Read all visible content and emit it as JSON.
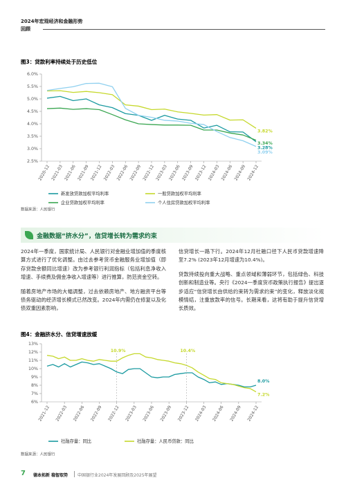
{
  "header": {
    "title": "2024年宏观经济和金融形势",
    "section": "回顾"
  },
  "chart_data": [
    {
      "type": "line",
      "title": "图3：贷款利率持续处于历史低位",
      "source": "数据来源：人民银行",
      "categories": [
        "2020-12",
        "2021-03",
        "2021-06",
        "2021-09",
        "2021-12",
        "2022-03",
        "2022-06",
        "2022-09",
        "2022-12",
        "2023-03",
        "2023-06",
        "2023-09",
        "2023-12",
        "2024-03",
        "2024-06",
        "2024-09",
        "2024-12"
      ],
      "ylim": [
        2.5,
        6.0
      ],
      "yticks": [
        {
          "value": 2.5,
          "label": "2.5%"
        },
        {
          "value": 3.0,
          "label": "3.0%"
        },
        {
          "value": 3.5,
          "label": "3.5%"
        },
        {
          "value": 4.0,
          "label": "4.0%"
        },
        {
          "value": 4.5,
          "label": "4.5%"
        },
        {
          "value": 5.0,
          "label": "5.0%"
        },
        {
          "value": 5.5,
          "label": "5.5%"
        },
        {
          "value": 6.0,
          "label": "6.0%"
        }
      ],
      "series": [
        {
          "name": "新发放贷款加权平均利率",
          "color": "#1a9aa0",
          "values": [
            5.03,
            5.1,
            4.93,
            5.0,
            4.76,
            4.65,
            4.41,
            4.34,
            4.14,
            4.34,
            4.19,
            4.14,
            3.83,
            3.94,
            3.68,
            3.67,
            3.28
          ],
          "value_labels": [
            null,
            null,
            null,
            null,
            null,
            null,
            null,
            null,
            null,
            null,
            null,
            null,
            null,
            null,
            null,
            null,
            "3.28%"
          ]
        },
        {
          "name": "一般贷款加权平均利率",
          "color": "#c5d82b",
          "values": [
            5.32,
            5.33,
            5.26,
            5.3,
            5.25,
            5.17,
            4.76,
            4.71,
            4.57,
            4.59,
            4.48,
            4.42,
            4.35,
            4.37,
            4.15,
            4.16,
            3.82
          ],
          "value_labels": [
            null,
            null,
            null,
            null,
            null,
            null,
            null,
            null,
            null,
            null,
            null,
            null,
            null,
            null,
            null,
            null,
            "3.82%"
          ]
        },
        {
          "name": "企业贷款加权平均利率",
          "color": "#3aa651",
          "values": [
            4.61,
            4.63,
            4.58,
            4.61,
            4.57,
            4.37,
            4.16,
            4.0,
            3.97,
            3.95,
            3.95,
            3.94,
            3.75,
            3.75,
            3.63,
            3.55,
            3.34
          ],
          "value_labels": [
            null,
            null,
            null,
            null,
            null,
            null,
            null,
            null,
            null,
            null,
            null,
            null,
            null,
            null,
            null,
            null,
            "3.34%"
          ]
        },
        {
          "name": "个人住房贷款加权平均利率",
          "color": "#8fd0ef",
          "values": [
            5.34,
            5.42,
            5.49,
            5.62,
            5.63,
            5.49,
            4.62,
            4.34,
            4.26,
            4.14,
            4.11,
            4.02,
            3.97,
            3.69,
            3.45,
            3.32,
            3.09
          ],
          "value_labels": [
            null,
            null,
            null,
            null,
            null,
            null,
            null,
            null,
            null,
            null,
            null,
            null,
            null,
            null,
            null,
            null,
            "3.09%"
          ]
        }
      ]
    },
    {
      "type": "line",
      "title": "图4：金融挤水分、信贷增速放缓",
      "source": "数据来源：人民银行",
      "categories": [
        "2021-12",
        null,
        null,
        "2022-03",
        null,
        null,
        "2022-06",
        null,
        null,
        "2022-09",
        null,
        null,
        "2022-12",
        null,
        null,
        "2023-03",
        null,
        null,
        "2023-06",
        null,
        null,
        "2023-09",
        null,
        null,
        "2023-12",
        null,
        null,
        "2024-03",
        null,
        null,
        "2024-06",
        null,
        null,
        "2024-09",
        null,
        null,
        "2024-12"
      ],
      "ylim": [
        6,
        13
      ],
      "yticks": [
        {
          "value": 6,
          "label": "6%"
        },
        {
          "value": 7,
          "label": "7%"
        },
        {
          "value": 8,
          "label": "8%"
        },
        {
          "value": 9,
          "label": "9%"
        },
        {
          "value": 10,
          "label": "10%"
        },
        {
          "value": 11,
          "label": "11%"
        },
        {
          "value": 12,
          "label": "12%"
        },
        {
          "value": 13,
          "label": "13%"
        }
      ],
      "series": [
        {
          "name": "社融存量：同比",
          "color": "#1a9aa0",
          "values": [
            10.3,
            10.5,
            10.2,
            10.6,
            10.2,
            10.5,
            10.8,
            10.7,
            10.5,
            10.6,
            10.3,
            10.0,
            9.6,
            9.4,
            9.9,
            10.0,
            10.0,
            9.5,
            9.0,
            8.9,
            9.0,
            9.0,
            9.3,
            9.4,
            9.5,
            9.5,
            9.0,
            8.7,
            8.3,
            8.4,
            8.1,
            8.2,
            8.1,
            8.0,
            7.8,
            7.8,
            8.0
          ],
          "value_labels": [
            null,
            null,
            null,
            null,
            null,
            null,
            null,
            null,
            null,
            null,
            null,
            null,
            null,
            null,
            null,
            null,
            null,
            null,
            null,
            null,
            null,
            null,
            null,
            null,
            null,
            null,
            null,
            null,
            null,
            null,
            null,
            null,
            null,
            null,
            null,
            null,
            "8.0%"
          ]
        },
        {
          "name": "社融存量：人民币贷款：同比",
          "color": "#c5d82b",
          "values": [
            11.6,
            11.5,
            11.2,
            11.4,
            11.0,
            11.0,
            11.2,
            11.0,
            10.9,
            11.1,
            11.0,
            10.9,
            10.9,
            11.3,
            11.6,
            11.8,
            11.8,
            11.4,
            11.3,
            11.1,
            11.0,
            10.9,
            10.7,
            10.6,
            10.4,
            10.1,
            9.6,
            9.2,
            8.8,
            8.7,
            8.3,
            8.2,
            8.1,
            7.9,
            7.7,
            7.6,
            7.2
          ],
          "value_labels": [
            null,
            null,
            null,
            null,
            null,
            null,
            null,
            null,
            null,
            null,
            null,
            null,
            "10.9%",
            null,
            null,
            null,
            null,
            null,
            null,
            null,
            null,
            null,
            null,
            null,
            "10.4%",
            null,
            null,
            null,
            null,
            null,
            null,
            null,
            null,
            null,
            null,
            null,
            "7.2%"
          ]
        }
      ]
    }
  ],
  "section": {
    "heading": "金融数据“挤水分”，信贷增长转为需求约束",
    "left": [
      "2024年一季度，国家统计局、人民银行对金融业增加值的季度核算方式进行了优化调整。由过去参考货币金融服务业增加值（即存贷款余额同比增速）改为参考银行利润指标（包括利息净收入增速、手续费及佣金净收入增速等）进行推算，防范资金空转。",
      "随着房地产市场的大幅调整，过去依赖房地产、地方融资平台等债务驱动的经济增长模式已然改变。2024年内需仍在修复以及化债双重因素影响，"
    ],
    "right": [
      "信贷增长一路下行。2024年12月社融口径下人民币贷款增速降至7.2% (2023年12月增速为10.4%)。",
      "贷款持续投向重大战略、重点领域和薄弱环节，包括绿色、科技创新和制造业等。央行《2024一季度货币政策执行报告》提出逐步适应“信贷增长由供给约束转为需求约束”的变化，释放淡化规模情结，注重放款率的信号。长期来看，这将有助于提升信贷增长质效。"
    ]
  },
  "footer": {
    "page": "7",
    "brand": "德本拓新 稳智取势",
    "title": "中国银行业2024年发展回顾及2025年展望"
  }
}
